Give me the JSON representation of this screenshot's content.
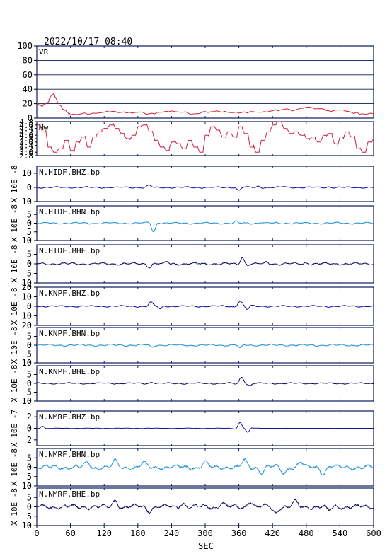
{
  "header": {
    "timestamp": "2022/10/17 08:40"
  },
  "colors": {
    "vr": "#d0203f",
    "mw": "#d0203f",
    "frame": "#0c1a5a",
    "bhz": "#1010a0",
    "bhn": "#2090d8",
    "bhe": "#0a0a60",
    "axis_text": "#000000"
  },
  "chart_data": {
    "type": "line",
    "xlabel": "SEC",
    "xlim": [
      0,
      600
    ],
    "xticks": [
      "0",
      "60",
      "120",
      "180",
      "240",
      "300",
      "360",
      "420",
      "480",
      "540",
      "600"
    ],
    "panels": [
      {
        "id": "vr",
        "label": "VR",
        "ylabel": "",
        "color_key": "vr",
        "kind": "vr",
        "ylim": [
          0,
          100
        ],
        "grid": true,
        "yticks": [
          "100",
          "80",
          "60",
          "40",
          "20",
          "0"
        ],
        "x": [
          0,
          10,
          20,
          25,
          30,
          35,
          40,
          48,
          55,
          60,
          80,
          100,
          120,
          140,
          160,
          180,
          200,
          220,
          240,
          260,
          280,
          300,
          320,
          340,
          360,
          380,
          400,
          420,
          440,
          460,
          480,
          500,
          520,
          540,
          560,
          580,
          600
        ],
        "y": [
          20,
          16,
          22,
          30,
          34,
          26,
          18,
          12,
          8,
          4,
          6,
          7,
          8,
          9,
          7,
          8,
          6,
          8,
          10,
          8,
          6,
          9,
          10,
          8,
          7,
          9,
          8,
          10,
          12,
          11,
          15,
          13,
          10,
          11,
          8,
          6,
          6
        ]
      },
      {
        "id": "mw",
        "label": "Mw",
        "ylabel": "",
        "color_key": "mw",
        "kind": "mw",
        "ylim": [
          2.8,
          4.8
        ],
        "grid": false,
        "yticks": [
          "4.8",
          "4.6",
          "4.4",
          "4.2",
          "4.0",
          "3.8",
          "3.6",
          "3.4",
          "3.2",
          "3.0",
          "2.8"
        ],
        "x": [
          0,
          10,
          20,
          30,
          40,
          50,
          60,
          70,
          80,
          90,
          100,
          110,
          120,
          130,
          140,
          150,
          160,
          170,
          180,
          190,
          200,
          210,
          220,
          230,
          240,
          250,
          260,
          270,
          280,
          290,
          300,
          310,
          320,
          330,
          340,
          350,
          360,
          370,
          380,
          390,
          400,
          410,
          420,
          430,
          440,
          450,
          460,
          470,
          480,
          490,
          500,
          510,
          520,
          530,
          540,
          550,
          560,
          570,
          580,
          590,
          600
        ],
        "y": [
          4.6,
          4.2,
          3.3,
          3.0,
          3.2,
          3.7,
          3.1,
          3.6,
          3.9,
          3.3,
          3.9,
          4.2,
          4.4,
          4.6,
          4.4,
          4.1,
          3.8,
          4.0,
          4.5,
          4.6,
          4.2,
          3.7,
          3.3,
          3.1,
          3.6,
          3.5,
          3.2,
          3.7,
          3.3,
          3.0,
          4.0,
          4.5,
          4.3,
          3.9,
          4.2,
          3.9,
          4.5,
          4.1,
          3.3,
          3.0,
          3.7,
          4.2,
          4.6,
          4.8,
          4.4,
          4.1,
          4.2,
          4.0,
          3.8,
          3.9,
          3.6,
          4.0,
          4.1,
          3.5,
          3.9,
          4.2,
          3.9,
          3.2,
          3.0,
          3.6,
          3.8
        ]
      },
      {
        "id": "hidf-bhz",
        "label": "N.HIDF.BHZ.bp",
        "ylabel": "X 10E -8",
        "color_key": "bhz",
        "kind": "wave",
        "ylim": [
          -10,
          15
        ],
        "yticks": [
          {
            "v": 10,
            "t": "10"
          },
          {
            "v": 0,
            "t": "0"
          },
          {
            "v": -10,
            "t": "10"
          }
        ],
        "noise": 0.5,
        "events": [
          {
            "t": 200,
            "amp": 1.5,
            "w": 8
          },
          {
            "t": 360,
            "amp": -2.0,
            "w": 7
          },
          {
            "t": 395,
            "amp": 0.8,
            "w": 6
          },
          {
            "t": 440,
            "amp": 0.6,
            "w": 6
          },
          {
            "t": 520,
            "amp": 0.5,
            "w": 6
          }
        ]
      },
      {
        "id": "hidf-bhn",
        "label": "N.HIDF.BHN.bp",
        "ylabel": "X 10E -8",
        "color_key": "bhn",
        "kind": "wave",
        "ylim": [
          -10,
          10
        ],
        "yticks": [
          {
            "v": 5,
            "t": "5"
          },
          {
            "v": 0,
            "t": "0"
          },
          {
            "v": -5,
            "t": "5"
          },
          {
            "v": -10,
            "t": "10"
          }
        ],
        "noise": 0.5,
        "events": [
          {
            "t": 208,
            "amp": -5.0,
            "w": 7
          },
          {
            "t": 355,
            "amp": 0.8,
            "w": 6
          },
          {
            "t": 400,
            "amp": 0.6,
            "w": 6
          }
        ]
      },
      {
        "id": "hidf-bhe",
        "label": "N.HIDF.BHE.bp",
        "ylabel": "X 10E -8",
        "color_key": "bhe",
        "kind": "wave",
        "ylim": [
          -10,
          10
        ],
        "yticks": [
          {
            "v": 5,
            "t": "5"
          },
          {
            "v": 0,
            "t": "0"
          },
          {
            "v": -5,
            "t": "5"
          },
          {
            "v": -10,
            "t": "10"
          }
        ],
        "noise": 0.6,
        "events": [
          {
            "t": 200,
            "amp": -1.5,
            "w": 8
          },
          {
            "t": 232,
            "amp": 1.0,
            "w": 6
          },
          {
            "t": 366,
            "amp": 3.5,
            "w": 7
          },
          {
            "t": 410,
            "amp": 1.0,
            "w": 6
          },
          {
            "t": 480,
            "amp": 0.7,
            "w": 6
          }
        ]
      },
      {
        "id": "knpf-bhz",
        "label": "N.KNPF.BHZ.bp",
        "ylabel": "X 10E -8",
        "color_key": "bhz",
        "kind": "wave",
        "ylim": [
          -20,
          20
        ],
        "yticks": [
          {
            "v": 20,
            "t": "20"
          },
          {
            "v": 10,
            "t": "10"
          },
          {
            "v": 0,
            "t": "0"
          },
          {
            "v": -10,
            "t": "10"
          },
          {
            "v": -20,
            "t": "20"
          }
        ],
        "noise": 0.8,
        "events": [
          {
            "t": 203,
            "amp": 4.0,
            "w": 8
          },
          {
            "t": 220,
            "amp": -3.0,
            "w": 6
          },
          {
            "t": 362,
            "amp": 5.5,
            "w": 8
          },
          {
            "t": 375,
            "amp": -3.0,
            "w": 6
          }
        ]
      },
      {
        "id": "knpf-bhn",
        "label": "N.KNPF.BHN.bp",
        "ylabel": "X 10E -8",
        "color_key": "bhn",
        "kind": "wave",
        "ylim": [
          -10,
          10
        ],
        "yticks": [
          {
            "v": 5,
            "t": "5"
          },
          {
            "v": 0,
            "t": "0"
          },
          {
            "v": -5,
            "t": "5"
          },
          {
            "v": -10,
            "t": "10"
          }
        ],
        "noise": 0.5,
        "events": [
          {
            "t": 205,
            "amp": -1.2,
            "w": 7
          },
          {
            "t": 362,
            "amp": -1.8,
            "w": 7
          }
        ]
      },
      {
        "id": "knpf-bhe",
        "label": "N.KNPF.BHE.bp",
        "ylabel": "X 10E -8",
        "color_key": "bhe",
        "kind": "wave",
        "ylim": [
          -10,
          10
        ],
        "yticks": [
          {
            "v": 5,
            "t": "5"
          },
          {
            "v": 0,
            "t": "0"
          },
          {
            "v": -5,
            "t": "5"
          },
          {
            "v": -10,
            "t": "10"
          }
        ],
        "noise": 0.4,
        "events": [
          {
            "t": 205,
            "amp": 0.8,
            "w": 7
          },
          {
            "t": 365,
            "amp": 3.5,
            "w": 8
          },
          {
            "t": 380,
            "amp": -1.2,
            "w": 6
          }
        ]
      },
      {
        "id": "nmrf-bhz",
        "label": "N.NMRF.BHZ.bp",
        "ylabel": "X 10E -7",
        "color_key": "bhz",
        "kind": "wave",
        "ylim": [
          -3,
          3
        ],
        "yticks": [
          {
            "v": 2,
            "t": "2"
          },
          {
            "v": 0,
            "t": "0"
          },
          {
            "v": -2,
            "t": "2"
          }
        ],
        "noise": 0.04,
        "quiet_after": 400,
        "events": [
          {
            "t": 10,
            "amp": 0.4,
            "w": 6
          },
          {
            "t": 362,
            "amp": 1.0,
            "w": 7
          },
          {
            "t": 376,
            "amp": -0.7,
            "w": 6
          }
        ]
      },
      {
        "id": "nmrf-bhn",
        "label": "N.NMRF.BHN.bp",
        "ylabel": "X 10E -8",
        "color_key": "bhn",
        "kind": "wave",
        "ylim": [
          -10,
          10
        ],
        "yticks": [
          {
            "v": 5,
            "t": "5"
          },
          {
            "v": 0,
            "t": "0"
          },
          {
            "v": -5,
            "t": "5"
          },
          {
            "v": -10,
            "t": "10"
          }
        ],
        "noise": 1.2,
        "events": [
          {
            "t": 90,
            "amp": 2.5,
            "w": 10
          },
          {
            "t": 140,
            "amp": 3.0,
            "w": 10
          },
          {
            "t": 190,
            "amp": 2.0,
            "w": 10
          },
          {
            "t": 300,
            "amp": 2.5,
            "w": 10
          },
          {
            "t": 370,
            "amp": 3.5,
            "w": 10
          },
          {
            "t": 400,
            "amp": -2.5,
            "w": 10
          },
          {
            "t": 440,
            "amp": -3.0,
            "w": 10
          },
          {
            "t": 470,
            "amp": 2.5,
            "w": 10
          },
          {
            "t": 510,
            "amp": -3.0,
            "w": 10
          }
        ]
      },
      {
        "id": "nmrf-bhe",
        "label": "N.NMRF.BHE.bp",
        "ylabel": "X 10E -8",
        "color_key": "bhe",
        "kind": "wave",
        "ylim": [
          -10,
          10
        ],
        "yticks": [
          {
            "v": 5,
            "t": "5"
          },
          {
            "v": 0,
            "t": "0"
          },
          {
            "v": -5,
            "t": "5"
          },
          {
            "v": -10,
            "t": "10"
          }
        ],
        "noise": 1.2,
        "events": [
          {
            "t": 140,
            "amp": 3.5,
            "w": 10
          },
          {
            "t": 200,
            "amp": -2.0,
            "w": 10
          },
          {
            "t": 260,
            "amp": 2.0,
            "w": 10
          },
          {
            "t": 330,
            "amp": 2.0,
            "w": 10
          },
          {
            "t": 380,
            "amp": 3.0,
            "w": 10
          },
          {
            "t": 425,
            "amp": -3.0,
            "w": 10
          },
          {
            "t": 460,
            "amp": 2.5,
            "w": 10
          },
          {
            "t": 520,
            "amp": -2.0,
            "w": 10
          }
        ]
      }
    ]
  }
}
